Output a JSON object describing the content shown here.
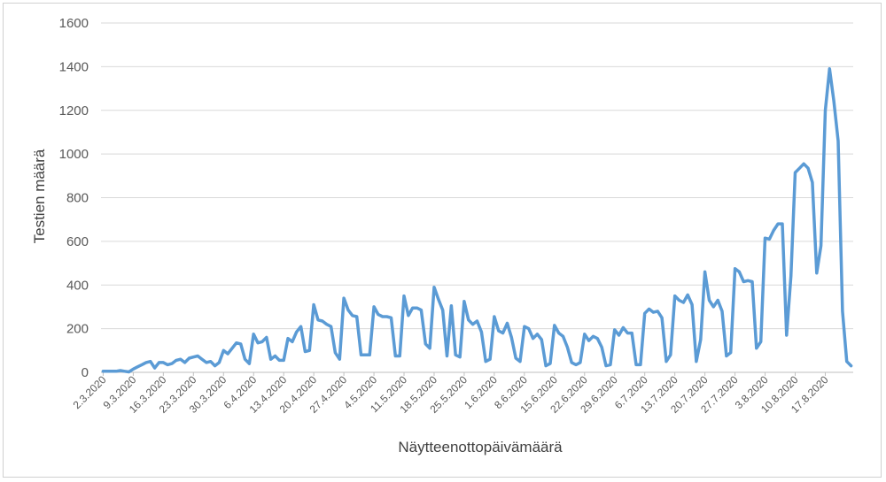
{
  "chart_data": {
    "type": "line",
    "xlabel": "Näytteenottopäivämäärä",
    "ylabel": "Testien määrä",
    "ylim": [
      0,
      1600
    ],
    "yticks": [
      0,
      200,
      400,
      600,
      800,
      1000,
      1200,
      1400,
      1600
    ],
    "grid": "horizontal",
    "x_tick_labels": [
      "2.3.2020",
      "9.3.2020",
      "16.3.2020",
      "23.3.2020",
      "30.3.2020",
      "6.4.2020",
      "13.4.2020",
      "20.4.2020",
      "27.4.2020",
      "4.5.2020",
      "11.5.2020",
      "18.5.2020",
      "25.5.2020",
      "1.6.2020",
      "8.6.2020",
      "15.6.2020",
      "22.6.2020",
      "29.6.2020",
      "6.7.2020",
      "13.7.2020",
      "20.7.2020",
      "27.7.2020",
      "3.8.2020",
      "10.8.2020",
      "17.8.2020"
    ],
    "line_color": "#5b9bd5",
    "start_date": "2.3.2020",
    "series": [
      {
        "values": [
          5,
          5,
          5,
          5,
          8,
          5,
          2,
          15,
          25,
          35,
          45,
          50,
          20,
          45,
          45,
          35,
          40,
          55,
          60,
          45,
          65,
          70,
          75,
          60,
          45,
          50,
          30,
          45,
          100,
          85,
          110,
          135,
          130,
          60,
          40,
          175,
          135,
          140,
          160,
          60,
          75,
          55,
          55,
          155,
          140,
          185,
          210,
          95,
          100,
          310,
          240,
          235,
          220,
          210,
          90,
          60,
          340,
          285,
          260,
          255,
          80,
          80,
          80,
          300,
          265,
          255,
          255,
          250,
          75,
          75,
          350,
          260,
          295,
          295,
          285,
          130,
          110,
          390,
          335,
          285,
          75,
          305,
          80,
          70,
          325,
          240,
          220,
          235,
          185,
          50,
          60,
          255,
          190,
          180,
          225,
          160,
          65,
          50,
          210,
          200,
          155,
          175,
          150,
          30,
          40,
          215,
          180,
          165,
          115,
          45,
          35,
          45,
          175,
          145,
          165,
          155,
          115,
          30,
          35,
          195,
          170,
          205,
          180,
          180,
          35,
          35,
          270,
          290,
          275,
          280,
          250,
          50,
          80,
          350,
          330,
          320,
          355,
          310,
          50,
          150,
          460,
          330,
          300,
          330,
          280,
          75,
          90,
          475,
          460,
          415,
          420,
          415,
          110,
          140,
          615,
          610,
          650,
          680,
          680,
          170,
          440,
          915,
          935,
          955,
          935,
          870,
          455,
          580,
          1200,
          1390,
          1240,
          1060,
          280,
          50,
          30
        ]
      }
    ]
  }
}
